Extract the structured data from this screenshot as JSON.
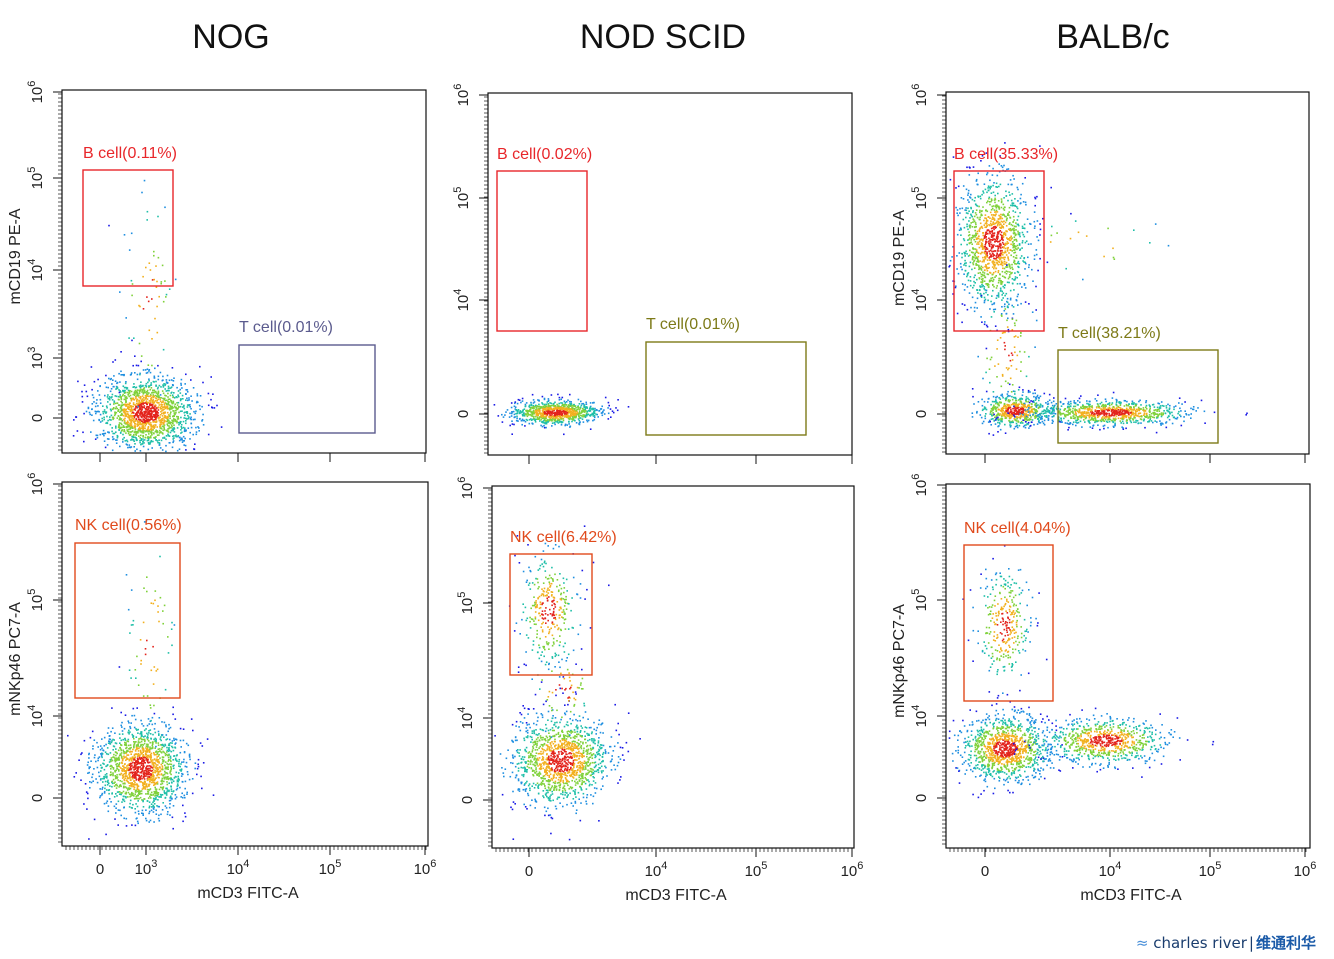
{
  "columns": [
    "NOG",
    "NOD SCID",
    "BALB/c"
  ],
  "x_axis_label": "mCD3 FITC-A",
  "y_axis_labels": {
    "row1": "mCD19 PE-A",
    "row2": "mNKp46 PC7-A"
  },
  "x_ticks": [
    [
      "0",
      "10^3",
      "10^4",
      "10^5",
      "10^6"
    ],
    [
      "0",
      "10^4",
      "10^5",
      "10^6"
    ],
    [
      "0",
      "10^4",
      "10^5",
      "10^6"
    ]
  ],
  "row1_y_ticks": [
    [
      "0",
      "10^3",
      "10^4",
      "10^5",
      "10^6"
    ],
    [
      "0",
      "10^4",
      "10^5",
      "10^6"
    ],
    [
      "0",
      "10^4",
      "10^5",
      "10^6"
    ]
  ],
  "row2_y_ticks": [
    [
      "0",
      "10^4",
      "10^5",
      "10^6"
    ],
    [
      "0",
      "10^4",
      "10^5",
      "10^6"
    ],
    [
      "0",
      "10^4",
      "10^5",
      "10^6"
    ]
  ],
  "logo": {
    "en": "charles river",
    "cn": "维通利华"
  },
  "chart_data": [
    {
      "type": "scatter",
      "row": 1,
      "strain": "NOG",
      "xlabel": "",
      "ylabel": "mCD19 PE-A",
      "gates": [
        {
          "label": "B cell(0.11%)",
          "percent": 0.11,
          "color": "#e8262a"
        },
        {
          "label": "T cell(0.01%)",
          "percent": 0.01,
          "color": "#5b5b8e"
        }
      ]
    },
    {
      "type": "scatter",
      "row": 1,
      "strain": "NOD SCID",
      "xlabel": "",
      "ylabel": "",
      "gates": [
        {
          "label": "B cell(0.02%)",
          "percent": 0.02,
          "color": "#e8262a"
        },
        {
          "label": "T cell(0.01%)",
          "percent": 0.01,
          "color": "#7d7a18"
        }
      ]
    },
    {
      "type": "scatter",
      "row": 1,
      "strain": "BALB/c",
      "xlabel": "",
      "ylabel": "mCD19 PE-A",
      "gates": [
        {
          "label": "B cell(35.33%)",
          "percent": 35.33,
          "color": "#e8262a"
        },
        {
          "label": "T cell(38.21%)",
          "percent": 38.21,
          "color": "#7d7a18"
        }
      ]
    },
    {
      "type": "scatter",
      "row": 2,
      "strain": "NOG",
      "xlabel": "mCD3 FITC-A",
      "ylabel": "mNKp46 PC7-A",
      "gates": [
        {
          "label": "NK cell(0.56%)",
          "percent": 0.56,
          "color": "#e04a1c"
        }
      ]
    },
    {
      "type": "scatter",
      "row": 2,
      "strain": "NOD SCID",
      "xlabel": "mCD3 FITC-A",
      "ylabel": "",
      "gates": [
        {
          "label": "NK cell(6.42%)",
          "percent": 6.42,
          "color": "#e04a1c"
        }
      ]
    },
    {
      "type": "scatter",
      "row": 2,
      "strain": "BALB/c",
      "xlabel": "mCD3 FITC-A",
      "ylabel": "mNKp46 PC7-A",
      "gates": [
        {
          "label": "NK cell(4.04%)",
          "percent": 4.04,
          "color": "#e04a1c"
        }
      ]
    }
  ]
}
